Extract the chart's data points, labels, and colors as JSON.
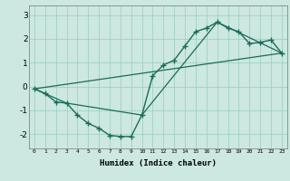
{
  "xlabel": "Humidex (Indice chaleur)",
  "bg_color": "#cce8e0",
  "line_color": "#1a6b5a",
  "grid_color": "#99ccbb",
  "xlim": [
    -0.5,
    23.5
  ],
  "ylim": [
    -2.6,
    3.4
  ],
  "line1_x": [
    0,
    1,
    2,
    3,
    4,
    5,
    6,
    7,
    8,
    9,
    10,
    11,
    12,
    13,
    14,
    15,
    16,
    17,
    18,
    19,
    20,
    21,
    22,
    23
  ],
  "line1_y": [
    -0.1,
    -0.3,
    -0.65,
    -0.7,
    -1.2,
    -1.55,
    -1.75,
    -2.05,
    -2.1,
    -2.1,
    -1.2,
    0.45,
    0.9,
    1.1,
    1.7,
    2.3,
    2.45,
    2.7,
    2.45,
    2.3,
    1.8,
    1.85,
    1.95,
    1.4
  ],
  "line2_x": [
    0,
    23
  ],
  "line2_y": [
    -0.1,
    1.4
  ],
  "line3_x": [
    0,
    3,
    10,
    17,
    23
  ],
  "line3_y": [
    -0.1,
    -0.7,
    -1.2,
    2.7,
    1.4
  ],
  "xtick_labels": [
    "0",
    "1",
    "2",
    "3",
    "4",
    "5",
    "6",
    "7",
    "8",
    "9",
    "10",
    "11",
    "12",
    "13",
    "14",
    "15",
    "16",
    "17",
    "18",
    "19",
    "20",
    "21",
    "22",
    "23"
  ],
  "ytick_values": [
    -2,
    -1,
    0,
    1,
    2,
    3
  ]
}
